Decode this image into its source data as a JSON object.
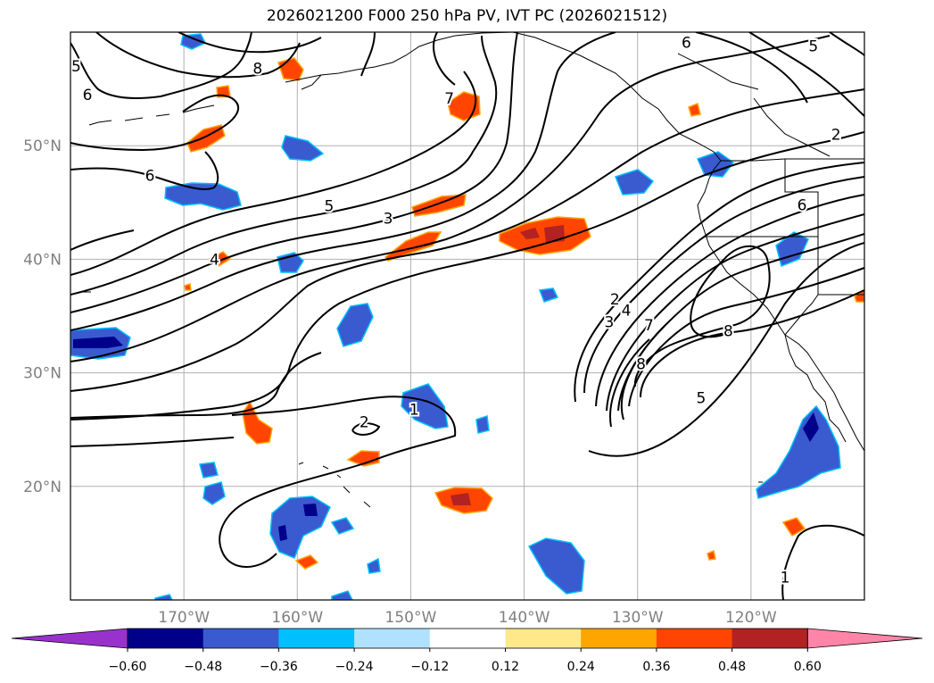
{
  "title": "2026021200 F000 250 hPa PV, IVT PC (2026021512)",
  "lat_labels": [
    {
      "label": "50°N",
      "lat": 50
    },
    {
      "label": "40°N",
      "lat": 40
    },
    {
      "label": "30°N",
      "lat": 30
    },
    {
      "label": "20°N",
      "lat": 20
    }
  ],
  "lon_labels": [
    {
      "label": "170°W",
      "lon": -170
    },
    {
      "label": "160°W",
      "lon": -160
    },
    {
      "label": "150°W",
      "lon": -150
    },
    {
      "label": "140°W",
      "lon": -140
    },
    {
      "label": "130°W",
      "lon": -130
    },
    {
      "label": "120°W",
      "lon": -120
    }
  ],
  "colorbar": {
    "ticks": [
      "−0.60",
      "−0.48",
      "−0.36",
      "−0.24",
      "−0.12",
      "0.12",
      "0.24",
      "0.36",
      "0.48",
      "0.60"
    ],
    "colors": [
      "#9932cc",
      "#00008b",
      "#3a5bd0",
      "#00bfff",
      "#b0e2ff",
      "#ffffff",
      "#ffe88a",
      "#ffa500",
      "#ff4500",
      "#b22222",
      "#ff85a8"
    ]
  },
  "contour_labels": [
    {
      "text": "5",
      "lon": -179.5,
      "lat": 57
    },
    {
      "text": "6",
      "lon": -178.5,
      "lat": 54.5
    },
    {
      "text": "8",
      "lon": -163.5,
      "lat": 56.8
    },
    {
      "text": "6",
      "lon": -173,
      "lat": 47.4
    },
    {
      "text": "4",
      "lon": -167.3,
      "lat": 40
    },
    {
      "text": "5",
      "lon": -157.2,
      "lat": 44.7
    },
    {
      "text": "3",
      "lon": -152,
      "lat": 43.6
    },
    {
      "text": "7",
      "lon": -146.6,
      "lat": 54.2
    },
    {
      "text": "6",
      "lon": -125.7,
      "lat": 59.1
    },
    {
      "text": "5",
      "lon": -114.5,
      "lat": 58.8
    },
    {
      "text": "2",
      "lon": -112.5,
      "lat": 51
    },
    {
      "text": "6",
      "lon": -115.5,
      "lat": 44.8
    },
    {
      "text": "2",
      "lon": -154.1,
      "lat": 25.7
    },
    {
      "text": "1",
      "lon": -149.7,
      "lat": 26.8
    },
    {
      "text": "2",
      "lon": -132,
      "lat": 36.5
    },
    {
      "text": "3",
      "lon": -132.5,
      "lat": 34.5
    },
    {
      "text": "4",
      "lon": -131,
      "lat": 35.5
    },
    {
      "text": "7",
      "lon": -129,
      "lat": 34.2
    },
    {
      "text": "8",
      "lon": -129.7,
      "lat": 30.8
    },
    {
      "text": "8",
      "lon": -122,
      "lat": 33.7
    },
    {
      "text": "5",
      "lon": -124.4,
      "lat": 27.8
    },
    {
      "text": "1",
      "lon": -117,
      "lat": 12
    }
  ]
}
